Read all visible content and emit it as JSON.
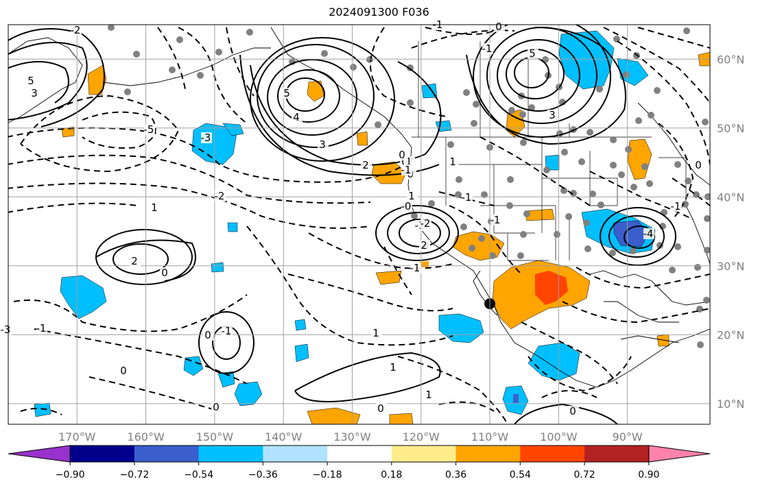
{
  "title": "2024091300 F036",
  "map": {
    "projection": "PlateCarree",
    "lon_range": [
      -180,
      -78
    ],
    "lat_range": [
      7,
      65
    ],
    "grid": true,
    "lon_ticks": [
      {
        "value": -170,
        "label": "170°W"
      },
      {
        "value": -160,
        "label": "160°W"
      },
      {
        "value": -150,
        "label": "150°W"
      },
      {
        "value": -140,
        "label": "140°W"
      },
      {
        "value": -130,
        "label": "130°W"
      },
      {
        "value": -120,
        "label": "120°W"
      },
      {
        "value": -110,
        "label": "110°W"
      },
      {
        "value": -100,
        "label": "100°W"
      },
      {
        "value": -90,
        "label": "90°W"
      }
    ],
    "lat_ticks": [
      {
        "value": 10,
        "label": "10°N"
      },
      {
        "value": 20,
        "label": "20°N"
      },
      {
        "value": 30,
        "label": "30°N"
      },
      {
        "value": 40,
        "label": "40°N"
      },
      {
        "value": 50,
        "label": "50°N"
      },
      {
        "value": 60,
        "label": "60°N"
      }
    ],
    "marker": {
      "lon": -110,
      "lat": 24.5
    }
  },
  "colorbar": {
    "colors": [
      "#9932cc",
      "#00008b",
      "#3a5fcd",
      "#00bfff",
      "#b0e2ff",
      "#ffffff",
      "#ffec8b",
      "#ffa500",
      "#ff4500",
      "#b22222",
      "#ff82ab"
    ],
    "tick_labels": [
      "−0.90",
      "−0.72",
      "−0.54",
      "−0.36",
      "−0.18",
      "0.18",
      "0.36",
      "0.54",
      "0.72",
      "0.90"
    ],
    "extend": "both"
  },
  "contour_labels": [
    "5",
    "3",
    "-2",
    "5",
    "4",
    "3",
    "2",
    "1",
    "0",
    "-1",
    "-2",
    "-3",
    "5",
    "3",
    "-5",
    "-3",
    "1",
    "0",
    "2",
    "-1",
    "0",
    "-1",
    "0",
    "1",
    "1",
    "-1",
    "-4",
    "0",
    "0",
    "-1",
    "-1",
    "-0",
    "0",
    "2",
    "1",
    "-2",
    "-1",
    "0",
    "-1",
    "1",
    "0",
    "-0",
    "1",
    "0",
    "-1",
    "-1",
    "0"
  ]
}
